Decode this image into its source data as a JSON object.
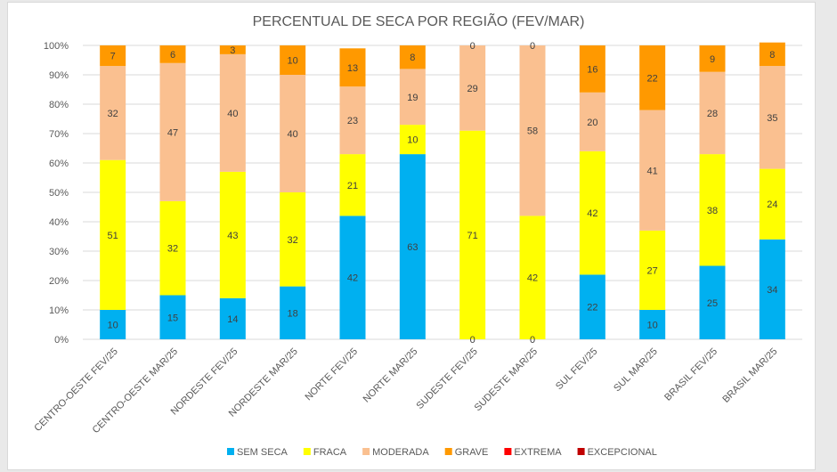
{
  "chart_data": {
    "type": "bar",
    "stacked": true,
    "percent_stacked": true,
    "title": "PERCENTUAL DE SECA POR REGIÃO (FEV/MAR)",
    "categories": [
      "CENTRO-OESTE FEV/25",
      "CENTRO-OESTE MAR/25",
      "NORDESTE FEV/25",
      "NORDESTE MAR/25",
      "NORTE FEV/25",
      "NORTE MAR/25",
      "SUDESTE FEV/25",
      "SUDESTE MAR/25",
      "SUL FEV/25",
      "SUL MAR/25",
      "BRASIL FEV/25",
      "BRASIL MAR/25"
    ],
    "y_ticks": [
      "0%",
      "10%",
      "20%",
      "30%",
      "40%",
      "50%",
      "60%",
      "70%",
      "80%",
      "90%",
      "100%"
    ],
    "ylim": [
      0,
      100
    ],
    "grid": true,
    "legend_position": "bottom",
    "series": [
      {
        "name": "SEM SECA",
        "color": "#00b0f0",
        "values": [
          10,
          15,
          14,
          18,
          42,
          63,
          0,
          0,
          22,
          10,
          25,
          34
        ]
      },
      {
        "name": "FRACA",
        "color": "#ffff00",
        "values": [
          51,
          32,
          43,
          32,
          21,
          10,
          71,
          42,
          42,
          27,
          38,
          24
        ]
      },
      {
        "name": "MODERADA",
        "color": "#fac090",
        "values": [
          32,
          47,
          40,
          40,
          23,
          19,
          29,
          58,
          20,
          41,
          28,
          35
        ]
      },
      {
        "name": "GRAVE",
        "color": "#ff9900",
        "values": [
          7,
          6,
          3,
          10,
          13,
          8,
          0,
          0,
          16,
          22,
          9,
          8
        ]
      },
      {
        "name": "EXTREMA",
        "color": "#ff0000",
        "values": [
          0,
          0,
          0,
          0,
          0,
          0,
          0,
          0,
          0,
          0,
          0,
          0
        ]
      },
      {
        "name": "EXCEPCIONAL",
        "color": "#c00000",
        "values": [
          0,
          0,
          0,
          0,
          0,
          0,
          0,
          0,
          0,
          0,
          0,
          0
        ]
      }
    ]
  }
}
